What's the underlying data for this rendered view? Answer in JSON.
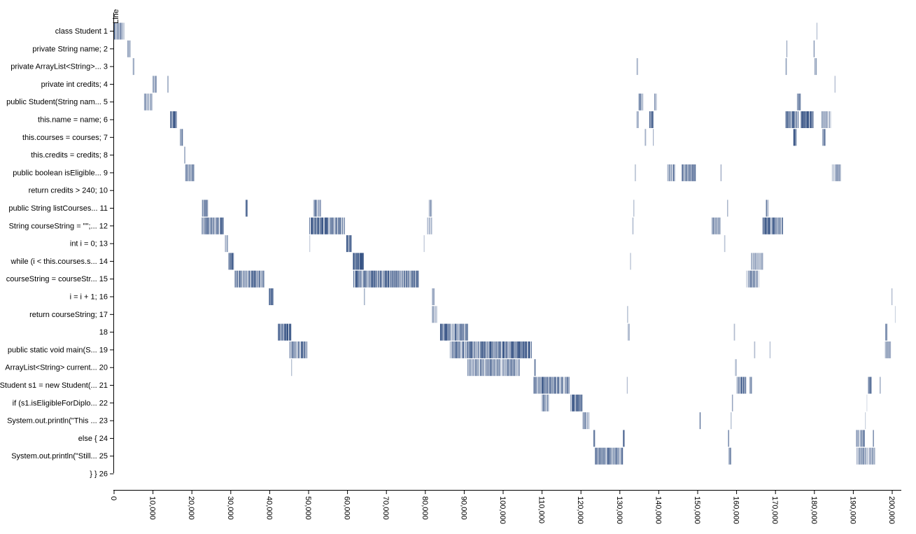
{
  "chart_data": {
    "type": "heatmap",
    "ylabel": "Line",
    "xlabel": "",
    "xlim": [
      0,
      202000
    ],
    "x_ticks": [
      0,
      10000,
      20000,
      30000,
      40000,
      50000,
      60000,
      70000,
      80000,
      90000,
      100000,
      110000,
      120000,
      130000,
      140000,
      150000,
      160000,
      170000,
      180000,
      190000,
      200000
    ],
    "x_tick_labels": [
      "0",
      "10,000",
      "20,000",
      "30,000",
      "40,000",
      "50,000",
      "60,000",
      "70,000",
      "80,000",
      "90,000",
      "100,000",
      "110,000",
      "120,000",
      "130,000",
      "140,000",
      "150,000",
      "160,000",
      "170,000",
      "180,000",
      "190,000",
      "200,000"
    ],
    "line_labels": [
      "class Student 1",
      "private String name; 2",
      "private ArrayList<String>... 3",
      "private int credits; 4",
      "public Student(String nam... 5",
      "this.name = name; 6",
      "this.courses = courses; 7",
      "this.credits = credits; 8",
      "public boolean isEligible... 9",
      "return credits > 240; 10",
      "public String listCourses... 11",
      "String courseString = \"\";... 12",
      "int i = 0; 13",
      "while (i < this.courses.s... 14",
      "courseString = courseStr... 15",
      "i = i + 1; 16",
      "return courseString; 17",
      "18",
      "public static void main(S... 19",
      "ArrayList<String> current... 20",
      "Student s1 = new Student(... 21",
      "if (s1.isEligibleForDiplo... 22",
      "System.out.println(\"This ... 23",
      "else { 24",
      "System.out.println(\"Still... 25",
      "} } 26"
    ],
    "color": "#2c4a7e",
    "segments": [
      {
        "line": 1,
        "start": 0,
        "end": 2600,
        "intensity": 0.7
      },
      {
        "line": 1,
        "start": 180500,
        "end": 180700,
        "intensity": 0.5
      },
      {
        "line": 2,
        "start": 3400,
        "end": 4300,
        "intensity": 0.7
      },
      {
        "line": 2,
        "start": 172800,
        "end": 173100,
        "intensity": 0.5
      },
      {
        "line": 2,
        "start": 179800,
        "end": 180100,
        "intensity": 0.5
      },
      {
        "line": 3,
        "start": 4800,
        "end": 5200,
        "intensity": 0.7
      },
      {
        "line": 3,
        "start": 134300,
        "end": 134600,
        "intensity": 0.5
      },
      {
        "line": 3,
        "start": 172600,
        "end": 172900,
        "intensity": 0.5
      },
      {
        "line": 3,
        "start": 180000,
        "end": 180600,
        "intensity": 0.9
      },
      {
        "line": 4,
        "start": 9900,
        "end": 10900,
        "intensity": 0.7
      },
      {
        "line": 4,
        "start": 13700,
        "end": 14000,
        "intensity": 0.5
      },
      {
        "line": 4,
        "start": 185200,
        "end": 185400,
        "intensity": 0.4
      },
      {
        "line": 5,
        "start": 7700,
        "end": 9900,
        "intensity": 0.6
      },
      {
        "line": 5,
        "start": 134800,
        "end": 136000,
        "intensity": 0.6
      },
      {
        "line": 5,
        "start": 138900,
        "end": 139400,
        "intensity": 0.8
      },
      {
        "line": 5,
        "start": 175500,
        "end": 176400,
        "intensity": 0.7
      },
      {
        "line": 6,
        "start": 14400,
        "end": 16100,
        "intensity": 1.0
      },
      {
        "line": 6,
        "start": 134300,
        "end": 134800,
        "intensity": 0.5
      },
      {
        "line": 6,
        "start": 137600,
        "end": 138600,
        "intensity": 1.0
      },
      {
        "line": 6,
        "start": 172500,
        "end": 176000,
        "intensity": 0.75
      },
      {
        "line": 6,
        "start": 176500,
        "end": 179800,
        "intensity": 0.95
      },
      {
        "line": 6,
        "start": 181800,
        "end": 184200,
        "intensity": 0.5
      },
      {
        "line": 7,
        "start": 16900,
        "end": 17800,
        "intensity": 0.95
      },
      {
        "line": 7,
        "start": 136400,
        "end": 136800,
        "intensity": 0.6
      },
      {
        "line": 7,
        "start": 138500,
        "end": 138700,
        "intensity": 0.5
      },
      {
        "line": 7,
        "start": 174600,
        "end": 175400,
        "intensity": 0.85
      },
      {
        "line": 7,
        "start": 182000,
        "end": 182800,
        "intensity": 0.85
      },
      {
        "line": 8,
        "start": 18000,
        "end": 18300,
        "intensity": 0.5
      },
      {
        "line": 9,
        "start": 18300,
        "end": 20600,
        "intensity": 0.6
      },
      {
        "line": 9,
        "start": 133800,
        "end": 134100,
        "intensity": 0.6
      },
      {
        "line": 9,
        "start": 142200,
        "end": 144200,
        "intensity": 0.65
      },
      {
        "line": 9,
        "start": 145900,
        "end": 149500,
        "intensity": 0.8
      },
      {
        "line": 9,
        "start": 155900,
        "end": 156100,
        "intensity": 0.5
      },
      {
        "line": 9,
        "start": 184500,
        "end": 186800,
        "intensity": 0.6
      },
      {
        "line": 11,
        "start": 22600,
        "end": 24300,
        "intensity": 0.8
      },
      {
        "line": 11,
        "start": 33800,
        "end": 34300,
        "intensity": 0.8
      },
      {
        "line": 11,
        "start": 51200,
        "end": 53200,
        "intensity": 0.8
      },
      {
        "line": 11,
        "start": 80900,
        "end": 81700,
        "intensity": 0.6
      },
      {
        "line": 11,
        "start": 133500,
        "end": 133700,
        "intensity": 0.5
      },
      {
        "line": 11,
        "start": 157600,
        "end": 157800,
        "intensity": 0.5
      },
      {
        "line": 11,
        "start": 167500,
        "end": 168200,
        "intensity": 0.85
      },
      {
        "line": 12,
        "start": 22500,
        "end": 28200,
        "intensity": 0.75
      },
      {
        "line": 12,
        "start": 50200,
        "end": 59300,
        "intensity": 0.9
      },
      {
        "line": 12,
        "start": 80500,
        "end": 81800,
        "intensity": 0.5
      },
      {
        "line": 12,
        "start": 133200,
        "end": 133500,
        "intensity": 0.5
      },
      {
        "line": 12,
        "start": 153600,
        "end": 155900,
        "intensity": 0.6
      },
      {
        "line": 12,
        "start": 166700,
        "end": 172000,
        "intensity": 0.85
      },
      {
        "line": 13,
        "start": 28500,
        "end": 29200,
        "intensity": 0.9
      },
      {
        "line": 13,
        "start": 50200,
        "end": 50400,
        "intensity": 0.4
      },
      {
        "line": 13,
        "start": 59700,
        "end": 61000,
        "intensity": 1.0
      },
      {
        "line": 13,
        "start": 79600,
        "end": 79800,
        "intensity": 0.3
      },
      {
        "line": 13,
        "start": 156800,
        "end": 157100,
        "intensity": 0.5
      },
      {
        "line": 14,
        "start": 29400,
        "end": 30800,
        "intensity": 0.8
      },
      {
        "line": 14,
        "start": 61400,
        "end": 64200,
        "intensity": 0.9
      },
      {
        "line": 14,
        "start": 132600,
        "end": 132900,
        "intensity": 0.5
      },
      {
        "line": 14,
        "start": 163700,
        "end": 166800,
        "intensity": 0.5
      },
      {
        "line": 15,
        "start": 31000,
        "end": 38600,
        "intensity": 0.75
      },
      {
        "line": 15,
        "start": 61500,
        "end": 78300,
        "intensity": 0.85
      },
      {
        "line": 15,
        "start": 162500,
        "end": 165700,
        "intensity": 0.6
      },
      {
        "line": 16,
        "start": 39800,
        "end": 40900,
        "intensity": 0.95
      },
      {
        "line": 16,
        "start": 64200,
        "end": 64500,
        "intensity": 0.4
      },
      {
        "line": 16,
        "start": 81700,
        "end": 82400,
        "intensity": 0.8
      },
      {
        "line": 16,
        "start": 199800,
        "end": 200100,
        "intensity": 0.5
      },
      {
        "line": 17,
        "start": 81700,
        "end": 83000,
        "intensity": 0.5
      },
      {
        "line": 17,
        "start": 131900,
        "end": 132100,
        "intensity": 0.4
      },
      {
        "line": 17,
        "start": 200700,
        "end": 200900,
        "intensity": 0.4
      },
      {
        "line": 18,
        "start": 42100,
        "end": 45600,
        "intensity": 0.9
      },
      {
        "line": 18,
        "start": 83800,
        "end": 91000,
        "intensity": 0.9
      },
      {
        "line": 18,
        "start": 132000,
        "end": 132500,
        "intensity": 0.7
      },
      {
        "line": 18,
        "start": 159300,
        "end": 159600,
        "intensity": 0.6
      },
      {
        "line": 18,
        "start": 198200,
        "end": 198800,
        "intensity": 0.6
      },
      {
        "line": 19,
        "start": 45100,
        "end": 49600,
        "intensity": 0.85
      },
      {
        "line": 19,
        "start": 86300,
        "end": 107300,
        "intensity": 0.85
      },
      {
        "line": 19,
        "start": 164500,
        "end": 164800,
        "intensity": 0.5
      },
      {
        "line": 19,
        "start": 168500,
        "end": 168700,
        "intensity": 0.4
      },
      {
        "line": 19,
        "start": 198100,
        "end": 199600,
        "intensity": 0.6
      },
      {
        "line": 20,
        "start": 45500,
        "end": 45800,
        "intensity": 0.5
      },
      {
        "line": 20,
        "start": 90800,
        "end": 104200,
        "intensity": 0.65
      },
      {
        "line": 20,
        "start": 108000,
        "end": 108300,
        "intensity": 0.6
      },
      {
        "line": 20,
        "start": 159600,
        "end": 160000,
        "intensity": 0.6
      },
      {
        "line": 21,
        "start": 107800,
        "end": 117000,
        "intensity": 0.85
      },
      {
        "line": 21,
        "start": 131800,
        "end": 132000,
        "intensity": 0.4
      },
      {
        "line": 21,
        "start": 160000,
        "end": 162500,
        "intensity": 0.85
      },
      {
        "line": 21,
        "start": 163300,
        "end": 163900,
        "intensity": 0.7
      },
      {
        "line": 21,
        "start": 193800,
        "end": 194700,
        "intensity": 0.85
      },
      {
        "line": 21,
        "start": 196800,
        "end": 197100,
        "intensity": 0.5
      },
      {
        "line": 22,
        "start": 109800,
        "end": 111800,
        "intensity": 0.65
      },
      {
        "line": 22,
        "start": 117300,
        "end": 120300,
        "intensity": 0.8
      },
      {
        "line": 22,
        "start": 158800,
        "end": 159100,
        "intensity": 0.5
      },
      {
        "line": 22,
        "start": 193400,
        "end": 193600,
        "intensity": 0.4
      },
      {
        "line": 23,
        "start": 120400,
        "end": 122200,
        "intensity": 0.6
      },
      {
        "line": 23,
        "start": 150500,
        "end": 150800,
        "intensity": 0.85
      },
      {
        "line": 23,
        "start": 158500,
        "end": 158700,
        "intensity": 0.4
      },
      {
        "line": 23,
        "start": 193000,
        "end": 193200,
        "intensity": 0.5
      },
      {
        "line": 24,
        "start": 123200,
        "end": 123600,
        "intensity": 0.95
      },
      {
        "line": 24,
        "start": 130800,
        "end": 131200,
        "intensity": 0.85
      },
      {
        "line": 24,
        "start": 157800,
        "end": 158100,
        "intensity": 0.5
      },
      {
        "line": 24,
        "start": 190700,
        "end": 193000,
        "intensity": 0.8
      },
      {
        "line": 24,
        "start": 195000,
        "end": 195300,
        "intensity": 0.6
      },
      {
        "line": 25,
        "start": 123600,
        "end": 130800,
        "intensity": 0.75
      },
      {
        "line": 25,
        "start": 157900,
        "end": 158600,
        "intensity": 0.7
      },
      {
        "line": 25,
        "start": 190800,
        "end": 195600,
        "intensity": 0.65
      }
    ]
  }
}
